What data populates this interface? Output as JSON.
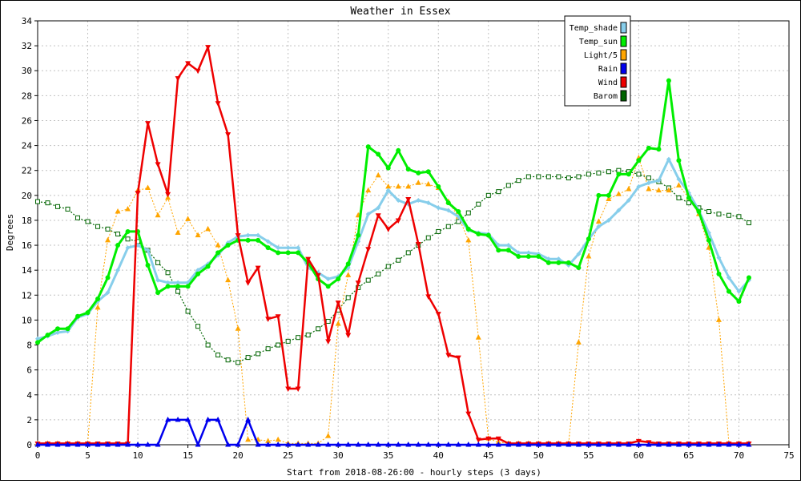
{
  "chart_data": {
    "type": "line",
    "title": "Weather in Essex",
    "xlabel": "Start from 2018-08-26:00 - hourly steps (3 days)",
    "ylabel": "Degrees",
    "xlim": [
      0,
      75
    ],
    "ylim": [
      0,
      34
    ],
    "xticks": [
      0,
      5,
      10,
      15,
      20,
      25,
      30,
      35,
      40,
      45,
      50,
      55,
      60,
      65,
      70,
      75
    ],
    "yticks": [
      0,
      2,
      4,
      6,
      8,
      10,
      12,
      14,
      16,
      18,
      20,
      22,
      24,
      26,
      28,
      30,
      32,
      34
    ],
    "grid": true,
    "legend_position": "top-right",
    "x": [
      0,
      1,
      2,
      3,
      4,
      5,
      6,
      7,
      8,
      9,
      10,
      11,
      12,
      13,
      14,
      15,
      16,
      17,
      18,
      19,
      20,
      21,
      22,
      23,
      24,
      25,
      26,
      27,
      28,
      29,
      30,
      31,
      32,
      33,
      34,
      35,
      36,
      37,
      38,
      39,
      40,
      41,
      42,
      43,
      44,
      45,
      46,
      47,
      48,
      49,
      50,
      51,
      52,
      53,
      54,
      55,
      56,
      57,
      58,
      59,
      60,
      61,
      62,
      63,
      64,
      65,
      66,
      67,
      68,
      69,
      70,
      71
    ],
    "series": [
      {
        "name": "Temp_shade",
        "color": "#87ceeb",
        "values": [
          8.5,
          8.7,
          9.0,
          9.1,
          10.2,
          10.5,
          11.5,
          12.2,
          14.0,
          15.8,
          16.0,
          15.6,
          13.2,
          13.0,
          13.0,
          13.0,
          14.0,
          14.5,
          15.2,
          16.2,
          16.7,
          16.8,
          16.8,
          16.3,
          15.8,
          15.8,
          15.8,
          14.2,
          13.8,
          13.3,
          13.5,
          14.2,
          16.3,
          18.5,
          19.0,
          20.4,
          19.6,
          19.3,
          19.6,
          19.4,
          19.0,
          18.8,
          18.3,
          17.2,
          17.0,
          16.9,
          16.0,
          16.0,
          15.4,
          15.4,
          15.3,
          14.9,
          14.9,
          14.4,
          15.3,
          16.5,
          17.5,
          18.0,
          18.8,
          19.6,
          20.7,
          21.0,
          21.2,
          22.9,
          21.3,
          20.2,
          18.8,
          17.0,
          15.0,
          13.4,
          12.3,
          13.2
        ],
        "marker": "diamond"
      },
      {
        "name": "Temp_sun",
        "color": "#00ee00",
        "values": [
          8.2,
          8.8,
          9.3,
          9.3,
          10.3,
          10.6,
          11.7,
          13.4,
          16.0,
          17.1,
          17.1,
          14.4,
          12.2,
          12.7,
          12.7,
          12.7,
          13.7,
          14.3,
          15.4,
          16.0,
          16.4,
          16.4,
          16.4,
          15.8,
          15.4,
          15.4,
          15.4,
          14.6,
          13.3,
          12.7,
          13.3,
          14.5,
          16.8,
          23.9,
          23.3,
          22.2,
          23.6,
          22.1,
          21.8,
          21.9,
          20.7,
          19.4,
          18.7,
          17.3,
          16.9,
          16.8,
          15.6,
          15.6,
          15.1,
          15.1,
          15.1,
          14.6,
          14.6,
          14.6,
          14.2,
          16.5,
          20.0,
          20.0,
          21.7,
          21.7,
          22.8,
          23.8,
          23.7,
          29.2,
          22.8,
          19.8,
          18.7,
          16.4,
          13.7,
          12.3,
          11.5,
          13.4
        ],
        "marker": "circle"
      },
      {
        "name": "Light/5",
        "color": "#ffa500",
        "values": [
          0.1,
          0.1,
          0.1,
          0.1,
          0.1,
          0.1,
          11.0,
          16.4,
          18.7,
          18.9,
          20.4,
          20.6,
          18.4,
          19.8,
          17.0,
          18.1,
          16.8,
          17.3,
          16.0,
          13.2,
          9.3,
          0.4,
          0.4,
          0.3,
          0.4,
          0.1,
          0.1,
          0.1,
          0.1,
          0.7,
          9.7,
          13.6,
          18.4,
          20.4,
          21.6,
          20.7,
          20.7,
          20.7,
          21.0,
          20.9,
          20.6,
          19.5,
          18.3,
          16.4,
          8.6,
          0.5,
          0.2,
          0.1,
          0.1,
          0.1,
          0.1,
          0.1,
          0.1,
          0.1,
          8.2,
          15.1,
          17.9,
          19.7,
          20.1,
          20.5,
          23.0,
          20.5,
          20.4,
          20.4,
          20.8,
          19.8,
          18.5,
          15.8,
          10.0,
          0.1,
          0.1,
          0.1
        ],
        "marker": "triangle"
      },
      {
        "name": "Rain",
        "color": "#0000ee",
        "values": [
          0,
          0,
          0,
          0,
          0,
          0,
          0,
          0,
          0,
          0,
          0,
          0,
          0,
          2,
          2,
          2,
          0,
          2,
          2,
          0,
          0,
          2,
          0,
          0,
          0,
          0,
          0,
          0,
          0,
          0,
          0,
          0,
          0,
          0,
          0,
          0,
          0,
          0,
          0,
          0,
          0,
          0,
          0,
          0,
          0,
          0,
          0,
          0,
          0,
          0,
          0,
          0,
          0,
          0,
          0,
          0,
          0,
          0,
          0,
          0,
          0,
          0,
          0,
          0,
          0,
          0,
          0,
          0,
          0,
          0,
          0,
          0
        ],
        "marker": "triangle"
      },
      {
        "name": "Wind",
        "color": "#ee0000",
        "values": [
          0.1,
          0.1,
          0.1,
          0.1,
          0.1,
          0.1,
          0.1,
          0.1,
          0.1,
          0.1,
          20.2,
          25.8,
          22.5,
          20.1,
          29.4,
          30.6,
          30.0,
          31.9,
          27.4,
          24.9,
          16.8,
          13.0,
          14.2,
          10.1,
          10.3,
          4.5,
          4.5,
          14.9,
          13.6,
          8.3,
          11.4,
          8.8,
          13.0,
          15.7,
          18.4,
          17.3,
          18.0,
          19.7,
          16.1,
          11.9,
          10.5,
          7.2,
          7.0,
          2.5,
          0.4,
          0.5,
          0.5,
          0.1,
          0.1,
          0.1,
          0.1,
          0.1,
          0.1,
          0.1,
          0.1,
          0.1,
          0.1,
          0.1,
          0.1,
          0.1,
          0.3,
          0.2,
          0.1,
          0.1,
          0.1,
          0.1,
          0.1,
          0.1,
          0.1,
          0.1,
          0.1,
          0.1
        ],
        "marker": "triangle-down"
      },
      {
        "name": "Barom",
        "color": "#006400",
        "values": [
          19.5,
          19.4,
          19.1,
          18.9,
          18.2,
          17.9,
          17.5,
          17.3,
          16.9,
          16.5,
          16.3,
          15.6,
          14.6,
          13.8,
          12.3,
          10.7,
          9.5,
          8.0,
          7.2,
          6.8,
          6.6,
          7.0,
          7.3,
          7.7,
          8.0,
          8.3,
          8.6,
          8.8,
          9.3,
          9.9,
          10.8,
          11.8,
          12.6,
          13.2,
          13.7,
          14.3,
          14.8,
          15.4,
          16.0,
          16.6,
          17.1,
          17.5,
          17.9,
          18.6,
          19.3,
          20.0,
          20.3,
          20.8,
          21.2,
          21.5,
          21.5,
          21.5,
          21.5,
          21.4,
          21.5,
          21.7,
          21.8,
          21.9,
          22.0,
          21.9,
          21.7,
          21.4,
          21.1,
          20.6,
          19.8,
          19.4,
          19.0,
          18.7,
          18.5,
          18.4,
          18.3,
          17.8
        ],
        "marker": "square"
      }
    ]
  }
}
